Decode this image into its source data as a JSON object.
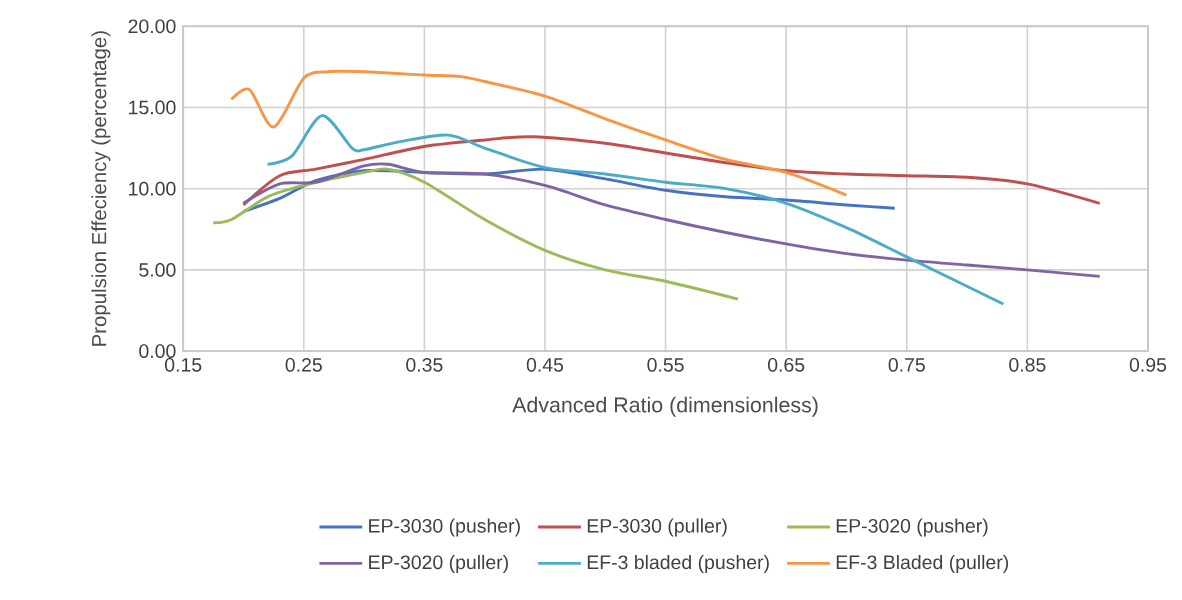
{
  "chart_data": {
    "type": "line",
    "xlabel": "Advanced Ratio (dimensionless)",
    "ylabel": "Propulsion Effeciency (percentage)",
    "xlim": [
      0.15,
      0.95
    ],
    "xticks": [
      0.15,
      0.25,
      0.35,
      0.45,
      0.55,
      0.65,
      0.75,
      0.85,
      0.95
    ],
    "ylim": [
      0,
      20
    ],
    "yticks": [
      {
        "value": 0,
        "label": "0.00"
      },
      {
        "value": 5,
        "label": "5.00"
      },
      {
        "value": 10,
        "label": "10.00"
      },
      {
        "value": 15,
        "label": "15.00"
      },
      {
        "value": 20,
        "label": "20.00"
      }
    ],
    "grid": true,
    "legend": "bottom",
    "marker": "none",
    "line_style": "solid",
    "series": [
      {
        "name": "EP-3030 (pusher)",
        "color": "#4472c4",
        "x": [
          0.2,
          0.23,
          0.26,
          0.3,
          0.35,
          0.4,
          0.45,
          0.5,
          0.55,
          0.6,
          0.65,
          0.7,
          0.74
        ],
        "values": [
          8.6,
          9.4,
          10.5,
          11.1,
          11.0,
          10.9,
          11.2,
          10.6,
          9.9,
          9.5,
          9.3,
          9.0,
          8.8
        ]
      },
      {
        "name": "EP-3030 (puller)",
        "color": "#c0504d",
        "x": [
          0.2,
          0.23,
          0.26,
          0.3,
          0.35,
          0.4,
          0.44,
          0.5,
          0.55,
          0.6,
          0.65,
          0.7,
          0.75,
          0.8,
          0.85,
          0.91
        ],
        "values": [
          9.0,
          10.8,
          11.2,
          11.8,
          12.6,
          13.0,
          13.2,
          12.8,
          12.2,
          11.6,
          11.1,
          10.9,
          10.8,
          10.7,
          10.3,
          9.1
        ]
      },
      {
        "name": "EP-3020 (pusher)",
        "color": "#9bbb59",
        "x": [
          0.175,
          0.19,
          0.22,
          0.25,
          0.3,
          0.32,
          0.35,
          0.4,
          0.45,
          0.5,
          0.55,
          0.61
        ],
        "values": [
          7.9,
          8.1,
          9.5,
          10.2,
          11.0,
          11.2,
          10.4,
          8.1,
          6.2,
          5.0,
          4.3,
          3.2
        ]
      },
      {
        "name": "EP-3020 (puller)",
        "color": "#8064a2",
        "x": [
          0.2,
          0.23,
          0.26,
          0.3,
          0.32,
          0.35,
          0.4,
          0.45,
          0.5,
          0.55,
          0.6,
          0.65,
          0.7,
          0.75,
          0.8,
          0.85,
          0.91
        ],
        "values": [
          9.1,
          10.3,
          10.4,
          11.4,
          11.5,
          11.0,
          10.9,
          10.2,
          9.0,
          8.1,
          7.3,
          6.6,
          6.0,
          5.6,
          5.3,
          5.0,
          4.6
        ]
      },
      {
        "name": "EF-3 bladed (pusher)",
        "color": "#4bacc6",
        "x": [
          0.22,
          0.24,
          0.265,
          0.29,
          0.3,
          0.33,
          0.37,
          0.4,
          0.45,
          0.5,
          0.55,
          0.6,
          0.65,
          0.7,
          0.75,
          0.83
        ],
        "values": [
          11.5,
          12.0,
          14.5,
          12.5,
          12.4,
          12.9,
          13.3,
          12.5,
          11.3,
          10.9,
          10.4,
          10.0,
          9.1,
          7.6,
          5.8,
          2.9
        ]
      },
      {
        "name": "EF-3 Bladed (puller)",
        "color": "#f79646",
        "x": [
          0.19,
          0.205,
          0.225,
          0.25,
          0.27,
          0.3,
          0.35,
          0.38,
          0.4,
          0.45,
          0.5,
          0.55,
          0.6,
          0.65,
          0.7
        ],
        "values": [
          15.5,
          16.1,
          13.8,
          16.8,
          17.2,
          17.2,
          17.0,
          16.9,
          16.6,
          15.7,
          14.3,
          13.0,
          11.8,
          11.0,
          9.6
        ]
      }
    ]
  }
}
